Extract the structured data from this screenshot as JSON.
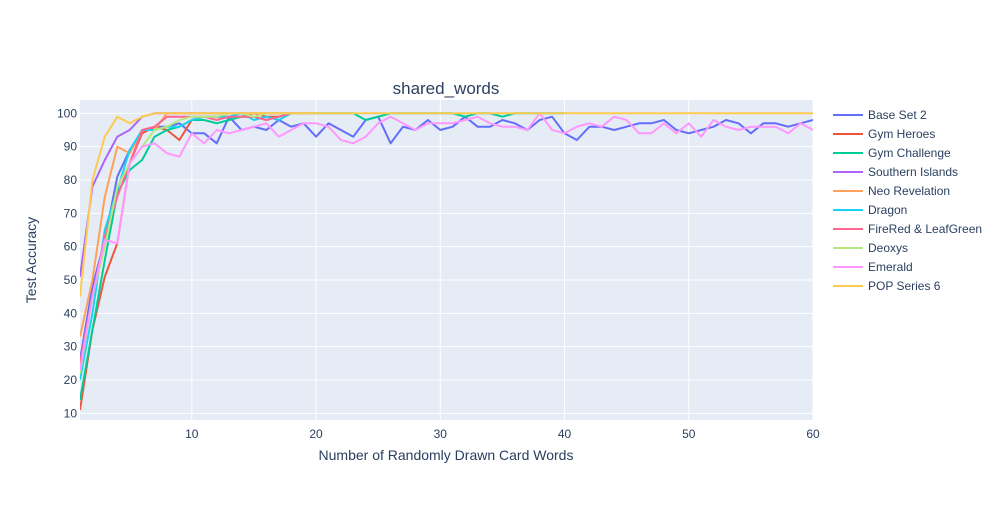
{
  "chart_data": {
    "type": "line",
    "title": "shared_words",
    "xlabel": "Number of Randomly Drawn Card Words",
    "ylabel": "Test Accuracy",
    "xlim": [
      1,
      60
    ],
    "ylim": [
      8,
      104
    ],
    "xticks": [
      10,
      20,
      30,
      40,
      50,
      60
    ],
    "yticks": [
      10,
      20,
      30,
      40,
      50,
      60,
      70,
      80,
      90,
      100
    ],
    "grid": true,
    "legend_position": "right",
    "series": [
      {
        "name": "Base Set 2",
        "color": "#636efa",
        "x": [
          1,
          2,
          3,
          4,
          5,
          6,
          7,
          8,
          9,
          10,
          11,
          12,
          13,
          14,
          15,
          16,
          17,
          18,
          19,
          20,
          21,
          22,
          23,
          24,
          25,
          26,
          27,
          28,
          29,
          30,
          31,
          32,
          33,
          34,
          35,
          36,
          37,
          38,
          39,
          40,
          41,
          42,
          43,
          44,
          45,
          46,
          47,
          48,
          49,
          50,
          51,
          52,
          53,
          54,
          55,
          56,
          57,
          58,
          59,
          60
        ],
        "y": [
          26,
          48,
          62,
          81,
          89,
          94,
          96,
          96,
          97,
          94,
          94,
          91,
          99,
          95,
          96,
          95,
          98,
          96,
          97,
          93,
          97,
          95,
          93,
          98,
          99,
          91,
          96,
          95,
          98,
          95,
          96,
          99,
          96,
          96,
          98,
          97,
          95,
          98,
          99,
          94,
          92,
          96,
          96,
          95,
          96,
          97,
          97,
          98,
          95,
          94,
          95,
          96,
          98,
          97,
          94,
          97,
          97,
          96,
          97,
          98
        ]
      },
      {
        "name": "Gym Heroes",
        "color": "#ef553b",
        "x": [
          1,
          2,
          3,
          4,
          5,
          6,
          7,
          8,
          9,
          10,
          11,
          12,
          13,
          14,
          15,
          16,
          17,
          18,
          19,
          20
        ],
        "y": [
          11,
          35,
          51,
          61,
          85,
          94,
          96,
          95,
          92,
          98,
          99,
          99,
          99,
          99,
          100,
          99,
          99,
          100,
          100,
          100
        ]
      },
      {
        "name": "Gym Challenge",
        "color": "#00cc96",
        "x": [
          1,
          2,
          3,
          4,
          5,
          6,
          7,
          8,
          9,
          10,
          11,
          12,
          13,
          14,
          15,
          16,
          17,
          18,
          19,
          20,
          21,
          22,
          23,
          24,
          25,
          26,
          27,
          28,
          29,
          30,
          31,
          32,
          33,
          34,
          35,
          36,
          37,
          38,
          39,
          40
        ],
        "y": [
          14,
          35,
          56,
          76,
          83,
          86,
          93,
          95,
          96,
          98,
          98,
          97,
          98,
          99,
          99,
          98,
          99,
          100,
          100,
          100,
          100,
          100,
          100,
          98,
          99,
          100,
          100,
          100,
          100,
          100,
          100,
          99,
          100,
          100,
          99,
          100,
          100,
          100,
          100,
          100
        ]
      },
      {
        "name": "Southern Islands",
        "color": "#ab63fa",
        "x": [
          1,
          2,
          3,
          4,
          5,
          6,
          7,
          8,
          9,
          10,
          11,
          12,
          13,
          14,
          15,
          16,
          17,
          18,
          19,
          20
        ],
        "y": [
          51,
          78,
          86,
          93,
          95,
          99,
          100,
          100,
          100,
          100,
          100,
          100,
          100,
          100,
          100,
          100,
          100,
          100,
          100,
          100
        ]
      },
      {
        "name": "Neo Revelation",
        "color": "#ffa15a",
        "x": [
          1,
          2,
          3,
          4,
          5,
          6,
          7,
          8,
          9,
          10,
          11,
          12,
          13,
          14,
          15,
          16,
          17,
          18,
          19,
          20
        ],
        "y": [
          33,
          50,
          75,
          90,
          88,
          95,
          95,
          100,
          100,
          100,
          100,
          100,
          100,
          100,
          100,
          100,
          100,
          100,
          100,
          100
        ]
      },
      {
        "name": "Dragon",
        "color": "#19d3f3",
        "x": [
          1,
          2,
          3,
          4,
          5,
          6,
          7,
          8,
          9,
          10,
          11,
          12,
          13,
          14,
          15,
          16,
          17,
          18,
          19,
          20
        ],
        "y": [
          20,
          40,
          65,
          77,
          89,
          95,
          95,
          96,
          96,
          98,
          99,
          99,
          99,
          100,
          98,
          99,
          98,
          100,
          100,
          100
        ]
      },
      {
        "name": "FireRed & LeafGreen",
        "color": "#ff6692",
        "x": [
          1,
          2,
          3,
          4,
          5,
          6,
          7,
          8,
          9,
          10,
          11,
          12,
          13,
          14,
          15,
          16,
          17,
          18,
          19,
          20
        ],
        "y": [
          25,
          45,
          63,
          75,
          85,
          95,
          96,
          99,
          99,
          99,
          99,
          98,
          99,
          99,
          99,
          98,
          99,
          100,
          100,
          100
        ]
      },
      {
        "name": "Deoxys",
        "color": "#b6e880",
        "x": [
          1,
          2,
          3,
          4,
          5,
          6,
          7,
          8,
          9,
          10,
          11,
          12,
          13,
          14,
          15,
          16,
          17,
          18,
          19,
          20
        ],
        "y": [
          22,
          45,
          60,
          78,
          85,
          90,
          95,
          96,
          98,
          99,
          99,
          99,
          100,
          100,
          99,
          100,
          100,
          100,
          100,
          100
        ]
      },
      {
        "name": "Emerald",
        "color": "#ff97ff",
        "x": [
          1,
          2,
          3,
          4,
          5,
          6,
          7,
          8,
          9,
          10,
          11,
          12,
          13,
          14,
          15,
          16,
          17,
          18,
          19,
          20,
          21,
          22,
          23,
          24,
          25,
          26,
          27,
          28,
          29,
          30,
          31,
          32,
          33,
          34,
          35,
          36,
          37,
          38,
          39,
          40,
          41,
          42,
          43,
          44,
          45,
          46,
          47,
          48,
          49,
          50,
          51,
          52,
          53,
          54,
          55,
          56,
          57,
          58,
          59,
          60
        ],
        "y": [
          23,
          45,
          62,
          61,
          85,
          90,
          91,
          88,
          87,
          94,
          91,
          95,
          94,
          95,
          96,
          97,
          93,
          95,
          97,
          97,
          96,
          92,
          91,
          93,
          97,
          99,
          97,
          95,
          97,
          97,
          97,
          98,
          99,
          97,
          96,
          96,
          95,
          100,
          95,
          94,
          96,
          97,
          96,
          99,
          98,
          94,
          94,
          97,
          94,
          97,
          93,
          98,
          96,
          95,
          96,
          96,
          96,
          94,
          97,
          95
        ]
      },
      {
        "name": "POP Series 6",
        "color": "#fecb52",
        "x": [
          1,
          2,
          3,
          4,
          5,
          6,
          7,
          8,
          9,
          10,
          11,
          12,
          13,
          14,
          15,
          16,
          17,
          18,
          19,
          20,
          21,
          22,
          23,
          24,
          25,
          26,
          27,
          28,
          29,
          30,
          31,
          32,
          33,
          34,
          35,
          36,
          37,
          38,
          39,
          40,
          41,
          42,
          43,
          44,
          45,
          46,
          47,
          48,
          49,
          50,
          51,
          52,
          53,
          54,
          55,
          56,
          57,
          58,
          59,
          60
        ],
        "y": [
          45,
          80,
          93,
          99,
          97,
          99,
          100,
          100,
          100,
          100,
          100,
          100,
          100,
          100,
          100,
          100,
          100,
          100,
          100,
          100,
          100,
          100,
          100,
          100,
          100,
          100,
          100,
          100,
          100,
          100,
          100,
          100,
          100,
          100,
          100,
          100,
          100,
          100,
          100,
          100,
          100,
          100,
          100,
          100,
          100,
          100,
          100,
          100,
          100,
          100,
          100,
          100,
          100,
          100,
          100,
          100,
          100,
          100,
          100,
          100
        ]
      }
    ]
  }
}
